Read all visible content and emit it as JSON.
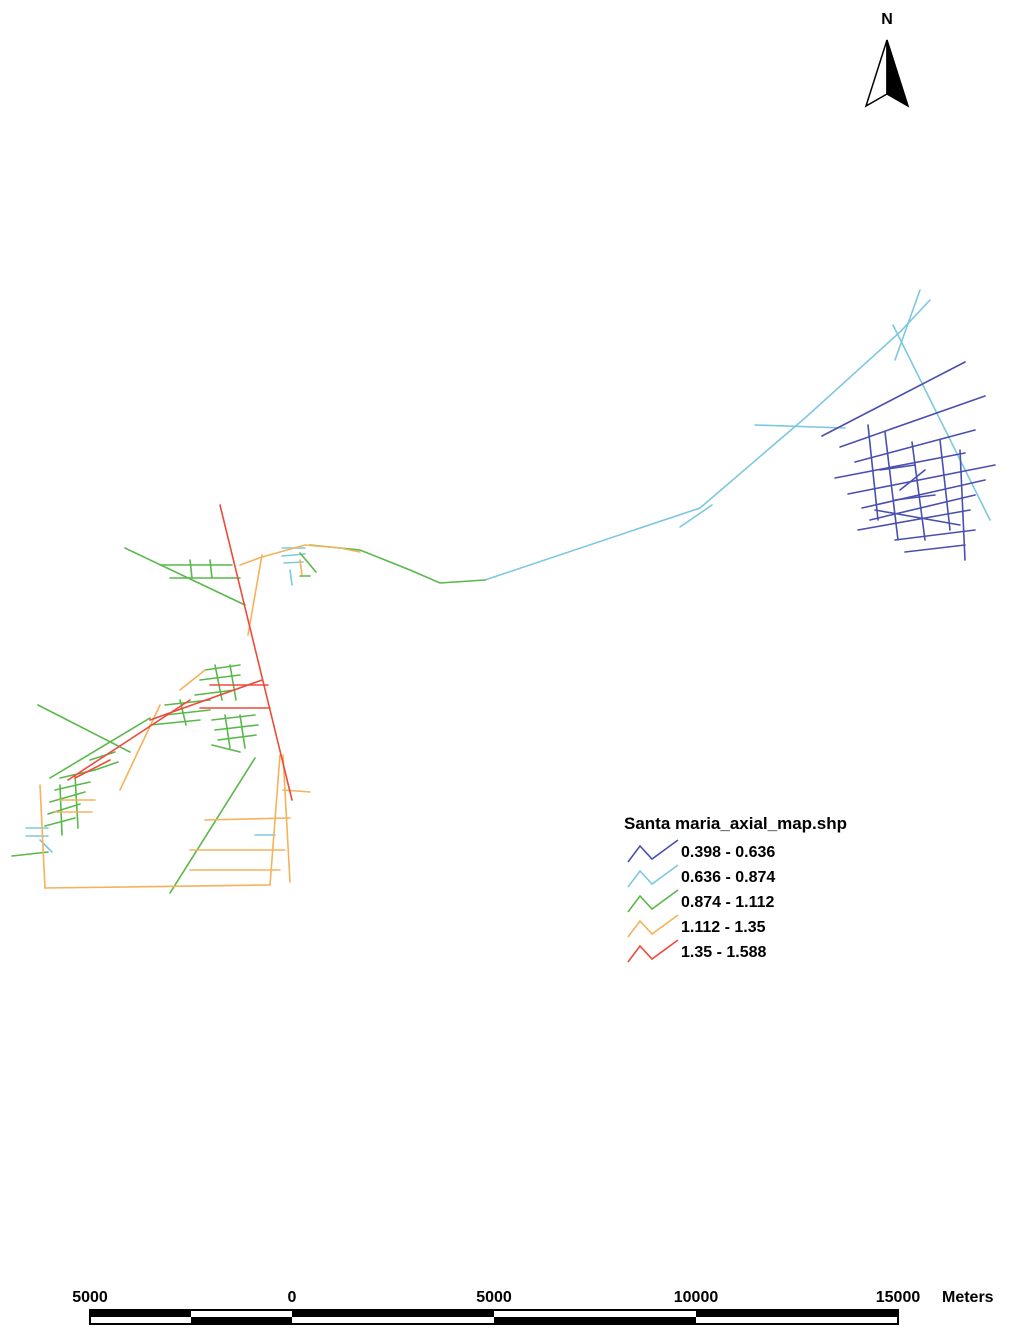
{
  "north_arrow": {
    "label": "N"
  },
  "legend": {
    "title": "Santa maria_axial_map.shp",
    "classes": [
      {
        "label": "0.398 - 0.636",
        "color": "#4a4fb0"
      },
      {
        "label": "0.636 - 0.874",
        "color": "#7cc8e0"
      },
      {
        "label": "0.874 - 1.112",
        "color": "#59b84a"
      },
      {
        "label": "1.112 - 1.35",
        "color": "#f5b25a"
      },
      {
        "label": "1.35 - 1.588",
        "color": "#ee4a3c"
      }
    ]
  },
  "scale_bar": {
    "ticks": [
      "5000",
      "0",
      "5000",
      "10000",
      "15000"
    ],
    "unit": "Meters"
  }
}
